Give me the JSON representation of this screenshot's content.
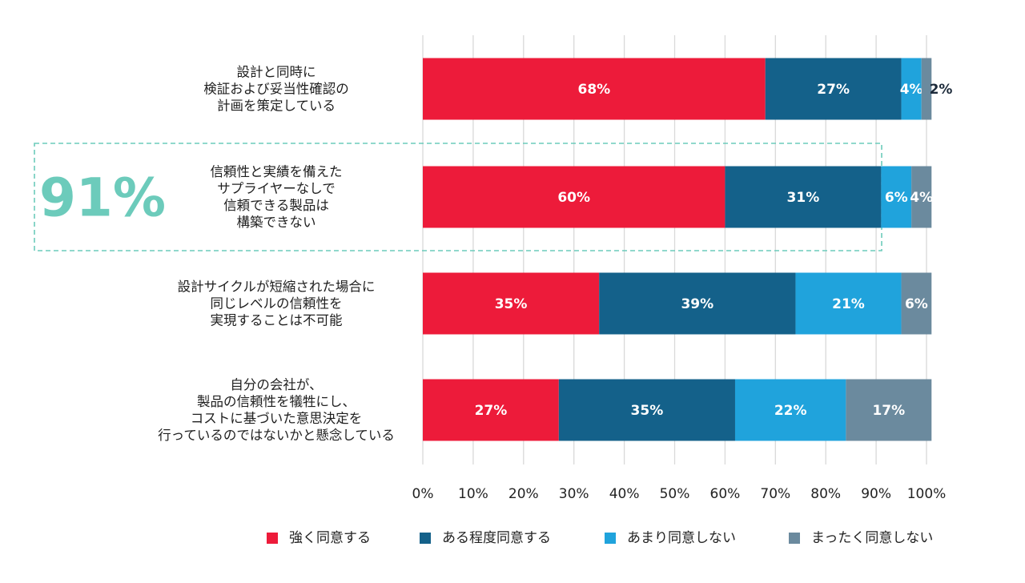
{
  "chart_data": {
    "type": "bar",
    "orientation": "horizontal",
    "stacked": true,
    "categories": [
      [
        "設計と同時に",
        "検証および妥当性確認の",
        "計画を策定している"
      ],
      [
        "信頼性と実績を備えた",
        "サプライヤーなしで",
        "信頼できる製品は",
        "構築できない"
      ],
      [
        "設計サイクルが短縮された場合に",
        "同じレベルの信頼性を",
        "実現することは不可能"
      ],
      [
        "自分の会社が、",
        "製品の信頼性を犠牲にし、",
        "コストに基づいた意思決定を",
        "行っているのではないかと懸念している"
      ]
    ],
    "series": [
      {
        "name": "強く同意する",
        "color": "#ed1b3a",
        "values": [
          68,
          60,
          35,
          27
        ],
        "labels": [
          "68%",
          "60%",
          "35%",
          "27%"
        ]
      },
      {
        "name": "ある程度同意する",
        "color": "#14618a",
        "values": [
          27,
          31,
          39,
          35
        ],
        "labels": [
          "27%",
          "31%",
          "39%",
          "35%"
        ]
      },
      {
        "name": "あまり同意しない",
        "color": "#20a3dc",
        "values": [
          4,
          6,
          21,
          22
        ],
        "labels": [
          "4%",
          "6%",
          "21%",
          "22%"
        ]
      },
      {
        "name": "まったく同意しない",
        "color": "#6b8a9e",
        "values": [
          2,
          4,
          6,
          17
        ],
        "labels": [
          "2%",
          "4%",
          "6%",
          "17%"
        ]
      }
    ],
    "xlim": [
      0,
      100
    ],
    "xticks": [
      "0%",
      "10%",
      "20%",
      "30%",
      "40%",
      "50%",
      "60%",
      "70%",
      "80%",
      "90%",
      "100%"
    ],
    "grid": true,
    "legend_position": "bottom",
    "highlight": {
      "text": "91%",
      "category_index": 1,
      "color": "#6ccbbb"
    }
  }
}
